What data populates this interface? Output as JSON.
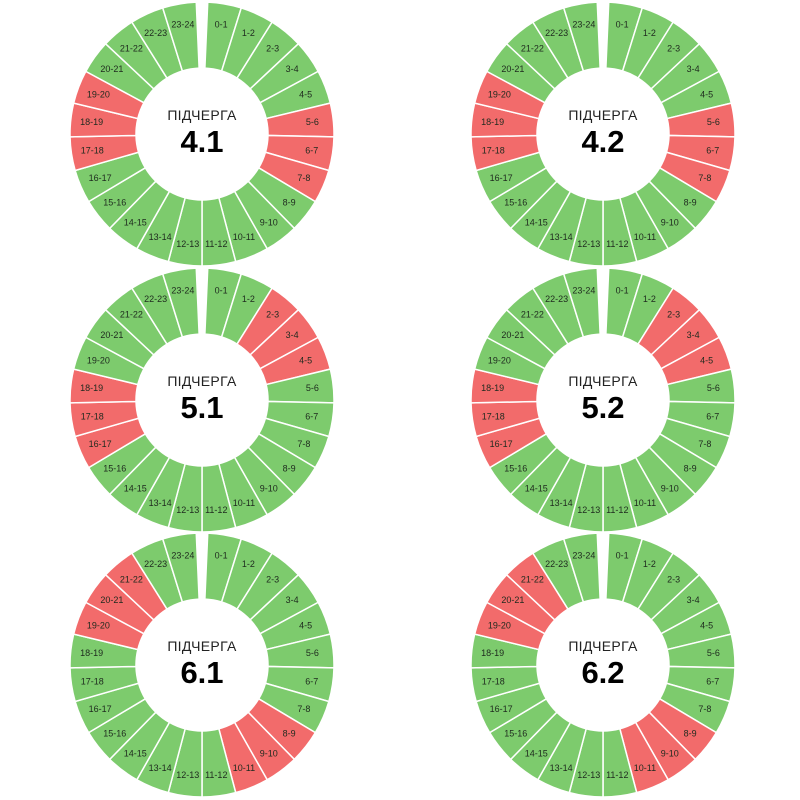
{
  "colors": {
    "on": "#7dcb6d",
    "off": "#f26b6b",
    "divider": "#ffffff"
  },
  "hour_labels": [
    "0-1",
    "1-2",
    "2-3",
    "3-4",
    "4-5",
    "5-6",
    "6-7",
    "7-8",
    "8-9",
    "9-10",
    "10-11",
    "11-12",
    "12-13",
    "13-14",
    "14-15",
    "15-16",
    "16-17",
    "17-18",
    "18-19",
    "19-20",
    "20-21",
    "21-22",
    "22-23",
    "23-24"
  ],
  "chart_data": [
    {
      "type": "pie",
      "title": "ПІДЧЕРГА",
      "queue": "4.1",
      "off_hours": [
        "5-6",
        "6-7",
        "7-8",
        "17-18",
        "18-19",
        "19-20"
      ]
    },
    {
      "type": "pie",
      "title": "ПІДЧЕРГА",
      "queue": "4.2",
      "off_hours": [
        "5-6",
        "6-7",
        "7-8",
        "17-18",
        "18-19",
        "19-20"
      ]
    },
    {
      "type": "pie",
      "title": "ПІДЧЕРГА",
      "queue": "5.1",
      "off_hours": [
        "2-3",
        "3-4",
        "4-5",
        "16-17",
        "17-18",
        "18-19"
      ]
    },
    {
      "type": "pie",
      "title": "ПІДЧЕРГА",
      "queue": "5.2",
      "off_hours": [
        "2-3",
        "3-4",
        "4-5",
        "16-17",
        "17-18",
        "18-19"
      ]
    },
    {
      "type": "pie",
      "title": "ПІДЧЕРГА",
      "queue": "6.1",
      "off_hours": [
        "8-9",
        "9-10",
        "10-11",
        "19-20",
        "20-21",
        "21-22"
      ]
    },
    {
      "type": "pie",
      "title": "ПІДЧЕРГА",
      "queue": "6.2",
      "off_hours": [
        "8-9",
        "9-10",
        "10-11",
        "19-20",
        "20-21",
        "21-22"
      ]
    }
  ]
}
